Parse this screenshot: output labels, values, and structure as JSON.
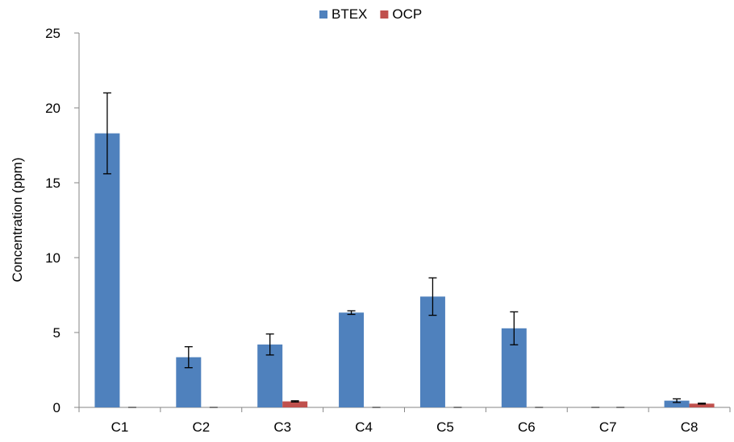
{
  "chart_data": {
    "type": "bar",
    "title": "",
    "xlabel": "",
    "ylabel": "Concentration (ppm)",
    "ylim": [
      0,
      25
    ],
    "yticks": [
      0,
      5,
      10,
      15,
      20,
      25
    ],
    "grid": false,
    "legend_position": "top-center",
    "categories": [
      "C1",
      "C2",
      "C3",
      "C4",
      "C5",
      "C6",
      "C7",
      "C8"
    ],
    "series": [
      {
        "name": "BTEX",
        "color": "#4F81BD",
        "values": [
          18.3,
          3.35,
          4.2,
          6.33,
          7.4,
          5.28,
          0,
          0.45
        ],
        "error": [
          2.7,
          0.7,
          0.7,
          0.12,
          1.25,
          1.1,
          0,
          0.12
        ]
      },
      {
        "name": "OCP",
        "color": "#C0504D",
        "values": [
          0,
          0,
          0.4,
          0,
          0,
          0,
          0,
          0.25
        ],
        "error": [
          0,
          0,
          0.04,
          0,
          0,
          0,
          0,
          0.03
        ]
      }
    ]
  }
}
